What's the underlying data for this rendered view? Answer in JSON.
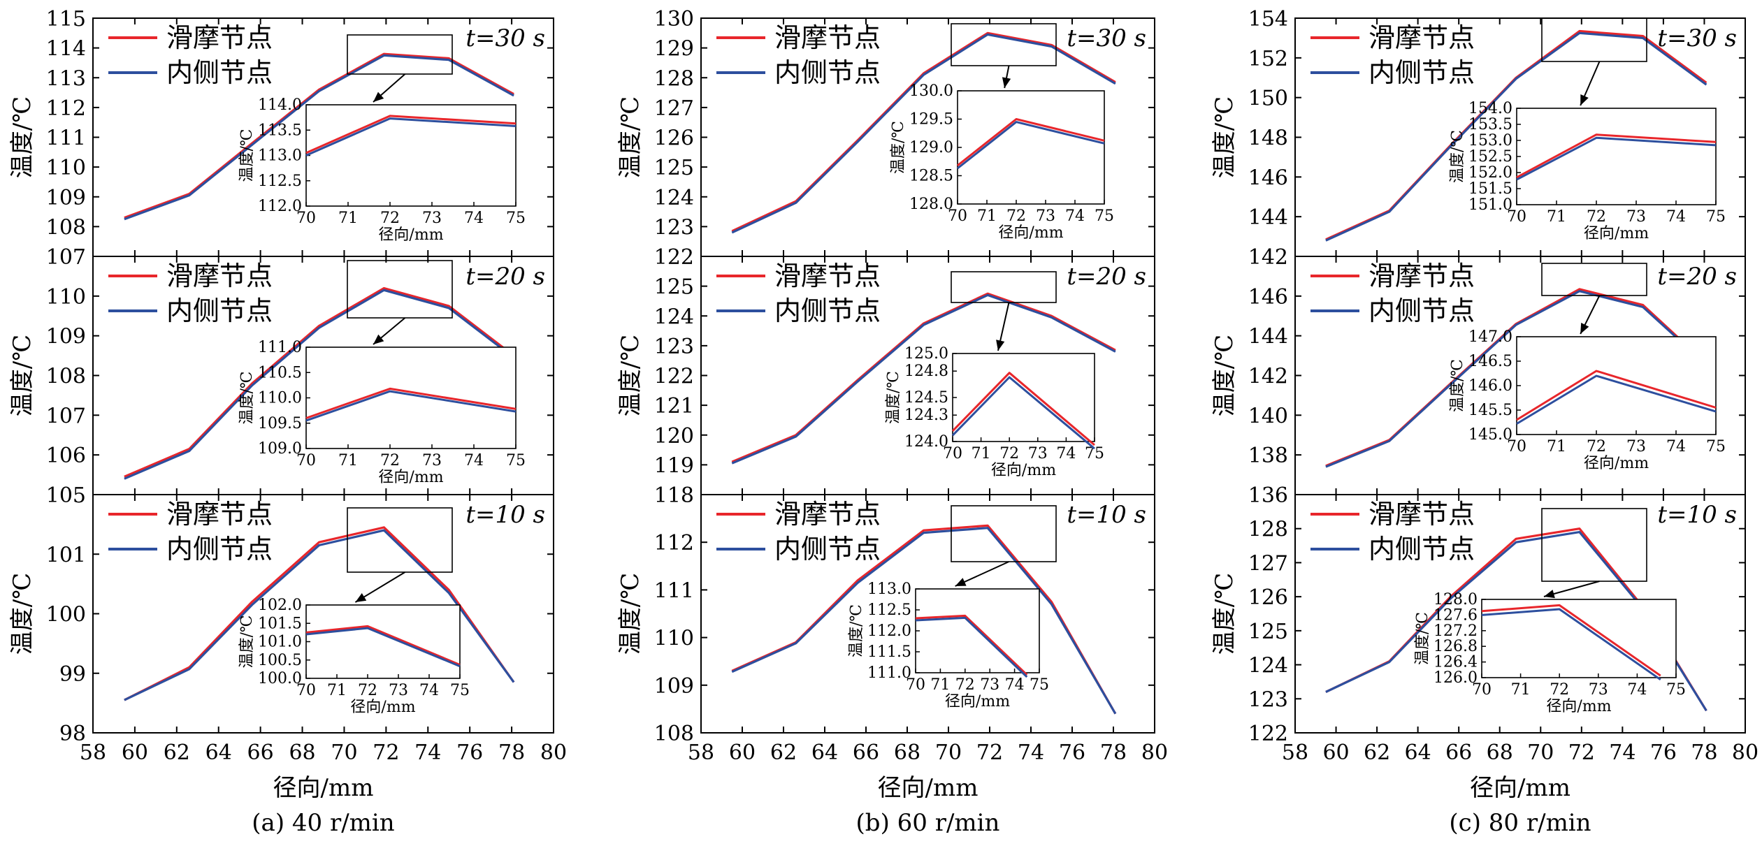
{
  "colors": {
    "sliding": "#e8262b",
    "inner": "#2d4f9e"
  },
  "chart_data": [
    {
      "type": "line",
      "caption": "(a) 40 r/min",
      "xlabel": "径向/mm",
      "ylabel": "温度/℃",
      "legend": [
        "滑摩节点",
        "内侧节点"
      ],
      "xlim": [
        58,
        80
      ],
      "xticks": [
        "58",
        "60",
        "62",
        "64",
        "66",
        "68",
        "70",
        "72",
        "74",
        "76",
        "78",
        "80"
      ],
      "panels": [
        {
          "time_label": "t=30 s",
          "ylim": [
            107,
            115
          ],
          "yticks": [
            "107",
            "108",
            "109",
            "110",
            "111",
            "112",
            "113",
            "114",
            "115"
          ],
          "x": [
            59.5,
            62.6,
            65.6,
            68.8,
            71.9,
            75.0,
            78.1
          ],
          "series": [
            {
              "name": "滑摩节点",
              "values": [
                108.3,
                109.1,
                110.8,
                112.6,
                113.8,
                113.65,
                112.45
              ]
            },
            {
              "name": "内侧节点",
              "values": [
                108.25,
                109.05,
                110.75,
                112.55,
                113.75,
                113.6,
                112.4
              ]
            }
          ],
          "inset": {
            "xlim": [
              70,
              75
            ],
            "ylim": [
              112.0,
              114.0
            ],
            "xticks": [
              "70",
              "71",
              "72",
              "73",
              "74",
              "75"
            ],
            "yticks": [
              "112.0",
              "112.5",
              "113.0",
              "113.5",
              "114.0"
            ],
            "xlabel": "径向/mm",
            "ylabel": "温度/℃",
            "x": [
              70,
              72,
              75
            ],
            "series": [
              {
                "name": "滑摩节点",
                "values": [
                  113.05,
                  113.78,
                  113.63
                ]
              },
              {
                "name": "内侧节点",
                "values": [
                  113.0,
                  113.73,
                  113.58
                ]
              }
            ]
          }
        },
        {
          "time_label": "t=20 s",
          "ylim": [
            105,
            111
          ],
          "yticks": [
            "105",
            "106",
            "107",
            "108",
            "109",
            "110"
          ],
          "x": [
            59.5,
            62.6,
            65.6,
            68.8,
            71.9,
            75.0,
            78.1
          ],
          "series": [
            {
              "name": "滑摩节点",
              "values": [
                105.45,
                106.15,
                107.8,
                109.25,
                110.2,
                109.75,
                108.5
              ]
            },
            {
              "name": "内侧节点",
              "values": [
                105.4,
                106.1,
                107.75,
                109.2,
                110.15,
                109.7,
                108.45
              ]
            }
          ],
          "inset": {
            "xlim": [
              70,
              75
            ],
            "ylim": [
              109.0,
              111.0
            ],
            "xticks": [
              "70",
              "71",
              "72",
              "73",
              "74",
              "75"
            ],
            "yticks": [
              "109.0",
              "109.5",
              "110.0",
              "110.5",
              "111.0"
            ],
            "xlabel": "径向/mm",
            "ylabel": "温度/℃",
            "x": [
              70,
              72,
              75
            ],
            "series": [
              {
                "name": "滑摩节点",
                "values": [
                  109.6,
                  110.18,
                  109.78
                ]
              },
              {
                "name": "内侧节点",
                "values": [
                  109.55,
                  110.13,
                  109.73
                ]
              }
            ]
          }
        },
        {
          "time_label": "t=10 s",
          "ylim": [
            98,
            102
          ],
          "yticks": [
            "98",
            "99",
            "100",
            "101"
          ],
          "x": [
            59.5,
            62.6,
            65.6,
            68.8,
            71.9,
            75.0,
            78.1
          ],
          "series": [
            {
              "name": "滑摩节点",
              "values": [
                98.55,
                99.1,
                100.2,
                101.2,
                101.45,
                100.4,
                98.85
              ]
            },
            {
              "name": "内侧节点",
              "values": [
                98.55,
                99.07,
                100.15,
                101.15,
                101.4,
                100.35,
                98.85
              ]
            }
          ],
          "inset": {
            "xlim": [
              70,
              75
            ],
            "ylim": [
              100.0,
              102.0
            ],
            "xticks": [
              "70",
              "71",
              "72",
              "73",
              "74",
              "75"
            ],
            "yticks": [
              "100.0",
              "100.5",
              "101.0",
              "101.5",
              "102.0"
            ],
            "xlabel": "径向/mm",
            "ylabel": "温度/℃",
            "x": [
              70,
              72,
              75
            ],
            "series": [
              {
                "name": "滑摩节点",
                "values": [
                  101.25,
                  101.42,
                  100.37
                ]
              },
              {
                "name": "内侧节点",
                "values": [
                  101.2,
                  101.37,
                  100.33
                ]
              }
            ]
          }
        }
      ]
    },
    {
      "type": "line",
      "caption": "(b) 60 r/min",
      "xlabel": "径向/mm",
      "ylabel": "温度/℃",
      "legend": [
        "滑摩节点",
        "内侧节点"
      ],
      "xlim": [
        58,
        80
      ],
      "xticks": [
        "58",
        "60",
        "62",
        "64",
        "66",
        "68",
        "70",
        "72",
        "74",
        "76",
        "78",
        "80"
      ],
      "panels": [
        {
          "time_label": "t=30 s",
          "ylim": [
            122,
            130
          ],
          "yticks": [
            "122",
            "123",
            "124",
            "125",
            "126",
            "127",
            "128",
            "129",
            "130"
          ],
          "x": [
            59.5,
            62.6,
            65.6,
            68.8,
            71.9,
            75.0,
            78.1
          ],
          "series": [
            {
              "name": "滑摩节点",
              "values": [
                122.85,
                123.85,
                125.9,
                128.15,
                129.5,
                129.1,
                127.85
              ]
            },
            {
              "name": "内侧节点",
              "values": [
                122.8,
                123.8,
                125.85,
                128.1,
                129.45,
                129.05,
                127.8
              ]
            }
          ],
          "inset": {
            "xlim": [
              70,
              75
            ],
            "ylim": [
              128.0,
              130.0
            ],
            "xticks": [
              "70",
              "71",
              "72",
              "73",
              "74",
              "75"
            ],
            "yticks": [
              "128.0",
              "128.5",
              "129.0",
              "129.5",
              "130.0"
            ],
            "xlabel": "径向/mm",
            "ylabel": "温度/℃",
            "x": [
              70,
              72,
              75
            ],
            "series": [
              {
                "name": "滑摩节点",
                "values": [
                  128.68,
                  129.5,
                  129.12
                ]
              },
              {
                "name": "内侧节点",
                "values": [
                  128.63,
                  129.45,
                  129.07
                ]
              }
            ]
          }
        },
        {
          "time_label": "t=20 s",
          "ylim": [
            118,
            126
          ],
          "yticks": [
            "118",
            "119",
            "120",
            "121",
            "122",
            "123",
            "124",
            "125"
          ],
          "x": [
            59.5,
            62.6,
            65.6,
            68.8,
            71.9,
            75.0,
            78.1
          ],
          "series": [
            {
              "name": "滑摩节点",
              "values": [
                119.1,
                120.0,
                121.85,
                123.75,
                124.75,
                124.0,
                122.85
              ]
            },
            {
              "name": "内侧节点",
              "values": [
                119.05,
                119.95,
                121.8,
                123.7,
                124.7,
                123.95,
                122.8
              ]
            }
          ],
          "inset": {
            "xlim": [
              70,
              75
            ],
            "ylim": [
              124.0,
              125.0
            ],
            "xticks": [
              "70",
              "71",
              "72",
              "73",
              "74",
              "75"
            ],
            "yticks": [
              "124.0",
              "124.3",
              "124.5",
              "124.8",
              "125.0"
            ],
            "xlabel": "径向/mm",
            "ylabel": "温度/℃",
            "x": [
              70,
              72,
              75
            ],
            "series": [
              {
                "name": "滑摩节点",
                "values": [
                  124.12,
                  124.78,
                  123.96
                ]
              },
              {
                "name": "内侧节点",
                "values": [
                  124.07,
                  124.73,
                  123.92
                ]
              }
            ]
          }
        },
        {
          "time_label": "t=10 s",
          "ylim": [
            108,
            113
          ],
          "yticks": [
            "108",
            "109",
            "110",
            "111",
            "112"
          ],
          "x": [
            59.5,
            62.6,
            65.6,
            68.8,
            71.9,
            75.0,
            78.1
          ],
          "series": [
            {
              "name": "滑摩节点",
              "values": [
                109.3,
                109.9,
                111.2,
                112.25,
                112.35,
                110.75,
                108.4
              ]
            },
            {
              "name": "内侧节点",
              "values": [
                109.28,
                109.88,
                111.15,
                112.2,
                112.3,
                110.7,
                108.4
              ]
            }
          ],
          "inset": {
            "xlim": [
              70,
              75
            ],
            "ylim": [
              111.0,
              113.0
            ],
            "xticks": [
              "70",
              "71",
              "72",
              "73",
              "74",
              "75"
            ],
            "yticks": [
              "111.0",
              "111.5",
              "112.0",
              "112.5",
              "113.0"
            ],
            "xlabel": "径向/mm",
            "ylabel": "温度/℃",
            "x": [
              70,
              72,
              74.5
            ],
            "series": [
              {
                "name": "滑摩节点",
                "values": [
                  112.3,
                  112.36,
                  110.95
                ]
              },
              {
                "name": "内侧节点",
                "values": [
                  112.25,
                  112.31,
                  110.9
                ]
              }
            ]
          }
        }
      ]
    },
    {
      "type": "line",
      "caption": "(c) 80 r/min",
      "xlabel": "径向/mm",
      "ylabel": "温度/℃",
      "legend": [
        "滑摩节点",
        "内侧节点"
      ],
      "xlim": [
        58,
        80
      ],
      "xticks": [
        "58",
        "60",
        "62",
        "64",
        "66",
        "68",
        "70",
        "72",
        "74",
        "76",
        "78",
        "80"
      ],
      "panels": [
        {
          "time_label": "t=30 s",
          "ylim": [
            142,
            154
          ],
          "yticks": [
            "142",
            "144",
            "146",
            "148",
            "150",
            "152",
            "154"
          ],
          "x": [
            59.5,
            62.6,
            65.6,
            68.8,
            71.9,
            75.0,
            78.1
          ],
          "series": [
            {
              "name": "滑摩节点",
              "values": [
                142.85,
                144.3,
                147.6,
                151.0,
                153.35,
                153.1,
                150.75
              ]
            },
            {
              "name": "内侧节点",
              "values": [
                142.8,
                144.25,
                147.55,
                150.95,
                153.25,
                153.0,
                150.65
              ]
            }
          ],
          "inset": {
            "xlim": [
              70,
              75
            ],
            "ylim": [
              151.0,
              154.0
            ],
            "xticks": [
              "70",
              "71",
              "72",
              "73",
              "74",
              "75"
            ],
            "yticks": [
              "151.0",
              "151.5",
              "152.0",
              "152.5",
              "153.0",
              "153.5",
              "154.0"
            ],
            "xlabel": "径向/mm",
            "ylabel": "温度/℃",
            "x": [
              70,
              72,
              75
            ],
            "series": [
              {
                "name": "滑摩节点",
                "values": [
                  151.85,
                  153.18,
                  152.95
                ]
              },
              {
                "name": "内侧节点",
                "values": [
                  151.78,
                  153.08,
                  152.85
                ]
              }
            ]
          }
        },
        {
          "time_label": "t=20 s",
          "ylim": [
            136,
            148
          ],
          "yticks": [
            "136",
            "138",
            "140",
            "142",
            "144",
            "146"
          ],
          "x": [
            59.5,
            62.6,
            65.6,
            68.8,
            71.9,
            75.0,
            78.1
          ],
          "series": [
            {
              "name": "滑摩节点",
              "values": [
                137.45,
                138.75,
                141.6,
                144.6,
                146.35,
                145.55,
                142.6
              ]
            },
            {
              "name": "内侧节点",
              "values": [
                137.4,
                138.7,
                141.55,
                144.55,
                146.25,
                145.45,
                142.55
              ]
            }
          ],
          "inset": {
            "xlim": [
              70,
              75
            ],
            "ylim": [
              145.0,
              147.0
            ],
            "xticks": [
              "70",
              "71",
              "72",
              "73",
              "74",
              "75"
            ],
            "yticks": [
              "145.0",
              "145.5",
              "146.0",
              "146.5",
              "147.0"
            ],
            "xlabel": "径向/mm",
            "ylabel": "温度/℃",
            "x": [
              70,
              72,
              75
            ],
            "series": [
              {
                "name": "滑摩节点",
                "values": [
                  145.3,
                  146.3,
                  145.55
                ]
              },
              {
                "name": "内侧节点",
                "values": [
                  145.22,
                  146.2,
                  145.47
                ]
              }
            ]
          }
        },
        {
          "time_label": "t=10 s",
          "ylim": [
            122,
            129
          ],
          "yticks": [
            "122",
            "123",
            "124",
            "125",
            "126",
            "127",
            "128"
          ],
          "x": [
            59.5,
            62.6,
            65.6,
            68.8,
            71.9,
            75.0,
            78.1
          ],
          "series": [
            {
              "name": "滑摩节点",
              "values": [
                123.2,
                124.1,
                126.0,
                127.7,
                128.0,
                125.7,
                122.65
              ]
            },
            {
              "name": "内侧节点",
              "values": [
                123.2,
                124.08,
                125.95,
                127.6,
                127.9,
                125.65,
                122.65
              ]
            }
          ],
          "inset": {
            "xlim": [
              70,
              75
            ],
            "ylim": [
              126.0,
              128.0
            ],
            "xticks": [
              "70",
              "71",
              "72",
              "73",
              "74",
              "75"
            ],
            "yticks": [
              "126.0",
              "126.4",
              "126.8",
              "127.2",
              "127.6",
              "128.0"
            ],
            "xlabel": "径向/mm",
            "ylabel": "温度/℃",
            "x": [
              70,
              72,
              74.6
            ],
            "series": [
              {
                "name": "滑摩节点",
                "values": [
                  127.7,
                  127.85,
                  126.05
                ]
              },
              {
                "name": "内侧节点",
                "values": [
                  127.6,
                  127.75,
                  125.95
                ]
              }
            ]
          }
        }
      ]
    }
  ]
}
